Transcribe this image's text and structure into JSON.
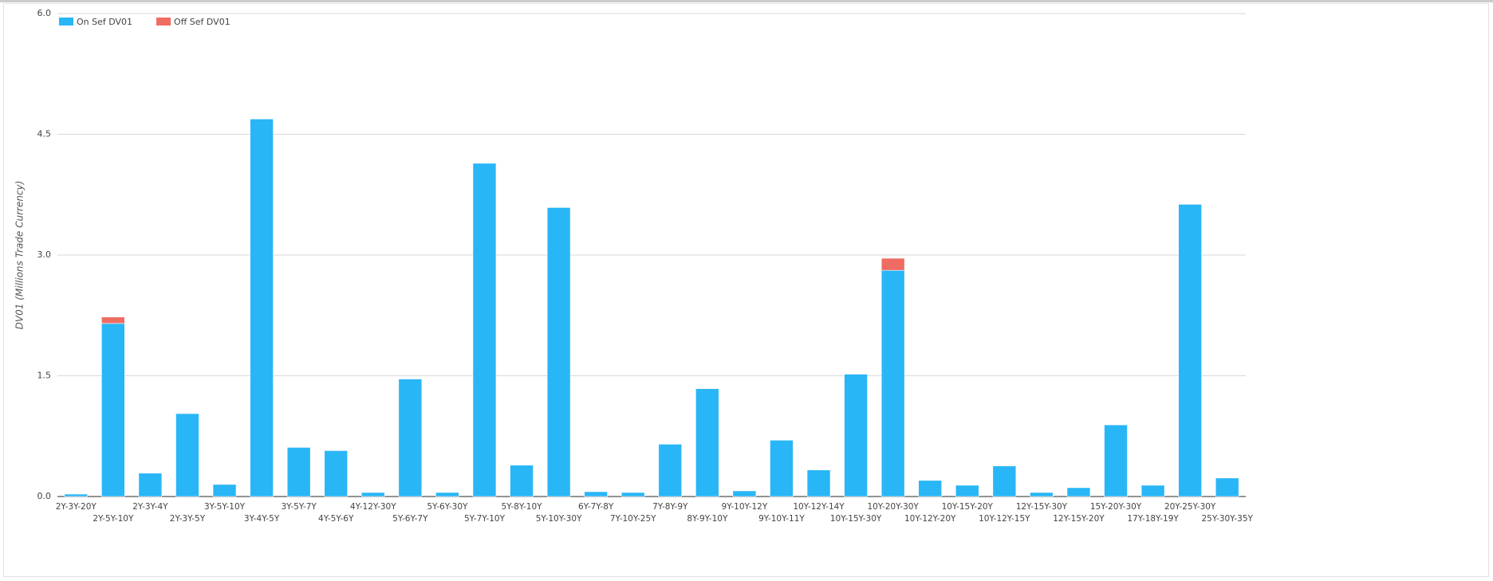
{
  "chart_data": {
    "type": "bar",
    "stacked": true,
    "y_label": "DV01 (Millions Trade Currency)",
    "categories": [
      "2Y-3Y-20Y",
      "2Y-5Y-10Y",
      "2Y-3Y-4Y",
      "2Y-3Y-5Y",
      "3Y-5Y-10Y",
      "3Y-4Y-5Y",
      "3Y-5Y-7Y",
      "4Y-5Y-6Y",
      "4Y-12Y-30Y",
      "5Y-6Y-7Y",
      "5Y-6Y-30Y",
      "5Y-7Y-10Y",
      "5Y-8Y-10Y",
      "5Y-10Y-30Y",
      "6Y-7Y-8Y",
      "7Y-10Y-25Y",
      "7Y-8Y-9Y",
      "8Y-9Y-10Y",
      "9Y-10Y-12Y",
      "9Y-10Y-11Y",
      "10Y-12Y-14Y",
      "10Y-15Y-30Y",
      "10Y-20Y-30Y",
      "10Y-12Y-20Y",
      "10Y-15Y-20Y",
      "10Y-12Y-15Y",
      "12Y-15Y-30Y",
      "12Y-15Y-20Y",
      "15Y-20Y-30Y",
      "17Y-18Y-19Y",
      "20Y-25Y-30Y",
      "25Y-30Y-35Y"
    ],
    "series": [
      {
        "name": "On Sef DV01",
        "color": "#29b6f6",
        "values": [
          0.03,
          2.15,
          0.29,
          1.03,
          0.15,
          4.69,
          0.61,
          0.57,
          0.05,
          1.46,
          0.05,
          4.14,
          0.39,
          3.59,
          0.06,
          0.05,
          0.65,
          1.34,
          0.07,
          0.7,
          0.33,
          1.52,
          2.81,
          0.2,
          0.14,
          0.38,
          0.05,
          0.11,
          0.89,
          0.14,
          3.63,
          0.23
        ]
      },
      {
        "name": "Off Sef DV01",
        "color": "#ef6c63",
        "values": [
          0,
          0.08,
          0,
          0,
          0,
          0,
          0,
          0,
          0,
          0,
          0,
          0,
          0,
          0,
          0,
          0,
          0,
          0,
          0,
          0,
          0,
          0,
          0.15,
          0,
          0,
          0,
          0,
          0,
          0,
          0,
          0,
          0
        ]
      }
    ],
    "ylim": [
      0,
      6
    ],
    "yticks": [
      {
        "value": 0,
        "label": "0.0"
      },
      1.5,
      {
        "value": 3,
        "label": "3.0"
      },
      4.5,
      {
        "value": 6,
        "label": "6.0"
      }
    ],
    "grid": true,
    "legend": "top-left"
  }
}
